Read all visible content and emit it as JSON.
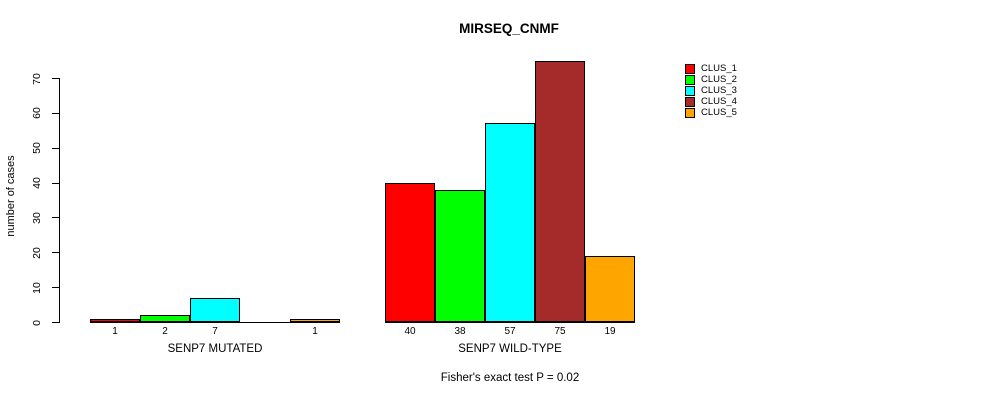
{
  "chart_data": {
    "type": "bar",
    "title": "MIRSEQ_CNMF",
    "ylabel": "number of cases",
    "xlabel": "",
    "ylim": [
      0,
      70
    ],
    "yticks": [
      0,
      10,
      20,
      30,
      40,
      50,
      60,
      70
    ],
    "grid": false,
    "legend_position": "top-right",
    "categories": [
      "SENP7 MUTATED",
      "SENP7 WILD-TYPE"
    ],
    "series": [
      {
        "name": "CLUS_1",
        "color": "#FF0000",
        "values": [
          1,
          40
        ]
      },
      {
        "name": "CLUS_2",
        "color": "#00FF00",
        "values": [
          2,
          38
        ]
      },
      {
        "name": "CLUS_3",
        "color": "#00FFFF",
        "values": [
          7,
          57
        ]
      },
      {
        "name": "CLUS_4",
        "color": "#A52A2A",
        "values": [
          0,
          75
        ]
      },
      {
        "name": "CLUS_5",
        "color": "#FFA500",
        "values": [
          1,
          19
        ]
      }
    ],
    "bar_value_labels": [
      [
        "1",
        "2",
        "7",
        "",
        "1"
      ],
      [
        "40",
        "38",
        "57",
        "75",
        "19"
      ]
    ],
    "annotation": "Fisher's exact test P = 0.02",
    "axis_color": "#000000",
    "background_color": "#FFFFFF"
  }
}
